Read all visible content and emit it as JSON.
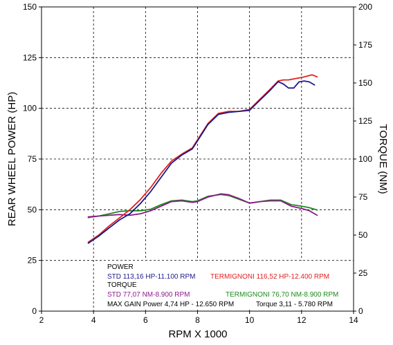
{
  "chart_data": {
    "type": "line",
    "xlabel": "RPM X 1000",
    "ylabel_left": "REAR WHEEL POWER (HP)",
    "ylabel_right": "TORQUE (NM)",
    "xlim": [
      2,
      14
    ],
    "ylim_left": [
      0,
      150
    ],
    "ylim_right": [
      0,
      200
    ],
    "x_ticks": [
      "2",
      "4",
      "6",
      "8",
      "10",
      "12",
      "14"
    ],
    "y_ticks_left": [
      "0",
      "25",
      "50",
      "75",
      "100",
      "125",
      "150"
    ],
    "y_ticks_right": [
      "0",
      "25",
      "50",
      "75",
      "100",
      "125",
      "150",
      "175",
      "200"
    ],
    "grid": true,
    "series": [
      {
        "name": "STD 113,16 HP-11.100 RPM",
        "axis": "left",
        "color": "#1a1a8c",
        "x": [
          3.8,
          4.2,
          4.6,
          5.0,
          5.4,
          5.8,
          6.2,
          6.6,
          7.0,
          7.4,
          7.8,
          8.0,
          8.4,
          8.8,
          9.2,
          9.6,
          10.0,
          10.4,
          10.8,
          11.1,
          11.3,
          11.5,
          11.7,
          11.9,
          12.1,
          12.3,
          12.5
        ],
        "y": [
          33.5,
          37,
          41,
          45,
          48,
          53,
          59,
          66,
          73,
          77,
          80,
          84,
          92,
          97,
          98,
          98.5,
          99,
          104,
          109,
          113.16,
          112,
          110,
          110,
          113,
          113.5,
          113,
          111.5
        ]
      },
      {
        "name": "TERMIGNONI 116,52 HP-12.400 RPM",
        "axis": "left",
        "color": "#e02020",
        "x": [
          3.8,
          4.2,
          4.6,
          5.0,
          5.4,
          5.8,
          6.2,
          6.6,
          7.0,
          7.4,
          7.8,
          8.0,
          8.4,
          8.8,
          9.2,
          9.6,
          10.0,
          10.4,
          10.8,
          11.1,
          11.3,
          11.5,
          11.7,
          11.9,
          12.1,
          12.4,
          12.6
        ],
        "y": [
          34,
          37.5,
          42,
          46,
          50,
          55,
          61,
          68,
          74,
          77.5,
          80.5,
          84.5,
          92.5,
          97.5,
          98.5,
          98.5,
          99.5,
          104.5,
          109.5,
          113.5,
          114,
          114,
          114.5,
          115,
          115.5,
          116.52,
          115.5
        ]
      },
      {
        "name": "STD 77,07 NM-8.900 RPM",
        "axis": "right",
        "color": "#8a1a8a",
        "x": [
          3.8,
          4.2,
          4.6,
          5.0,
          5.4,
          5.8,
          6.2,
          6.6,
          7.0,
          7.4,
          7.8,
          8.0,
          8.4,
          8.9,
          9.2,
          9.6,
          10.0,
          10.4,
          10.8,
          11.2,
          11.6,
          12.0,
          12.3,
          12.6
        ],
        "y": [
          62,
          62.5,
          63,
          63.5,
          63,
          64,
          66,
          69,
          72,
          72.5,
          71.5,
          72,
          75,
          77.07,
          76.5,
          74,
          71,
          72,
          72.5,
          72.5,
          69,
          67.5,
          66,
          63
        ]
      },
      {
        "name": "TERMIGNONI 76,70 NM-8.900 RPM",
        "axis": "right",
        "color": "#1c8a1c",
        "x": [
          3.8,
          4.2,
          4.6,
          5.0,
          5.4,
          5.8,
          6.2,
          6.6,
          7.0,
          7.4,
          7.8,
          8.0,
          8.4,
          8.9,
          9.2,
          9.6,
          10.0,
          10.4,
          10.8,
          11.2,
          11.6,
          12.0,
          12.3,
          12.6
        ],
        "y": [
          61.5,
          62.5,
          64,
          65.5,
          66,
          66,
          67,
          70,
          72.5,
          73,
          72,
          72.5,
          75.5,
          76.7,
          76,
          73.5,
          71,
          72,
          73,
          73,
          70,
          69,
          68,
          66.5
        ]
      }
    ],
    "legend": {
      "power_heading": "POWER",
      "power_std": "STD 113,16 HP-11.100 RPM",
      "power_term": "TERMIGNONI 116,52 HP-12.400 RPM",
      "torque_heading": "TORQUE",
      "torque_std": "STD 77,07 NM-8.900 RPM",
      "torque_term": "TERMIGNONI 76,70 NM-8.900 RPM",
      "gain_power": "MAX GAIN Power 4,74 HP - 12.650 RPM",
      "gain_torque": "Torque 3,11 - 5.780 RPM",
      "heading_color": "#000000",
      "gain_color": "#000000"
    }
  }
}
